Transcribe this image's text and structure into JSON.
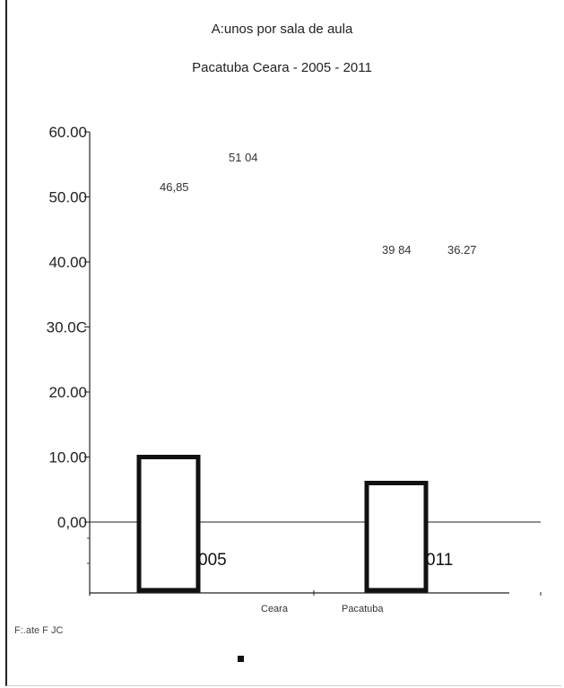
{
  "chart_data": {
    "type": "bar",
    "title": "A:unos por sala de aula",
    "subtitle": "Pacatuba   Ceara - 2005 - 2011",
    "ylim": [
      0,
      60
    ],
    "yticks": [
      "60.00",
      "50.00",
      "40.00",
      "30.0C",
      "20.00",
      "10.00",
      "0,00"
    ],
    "ytick_values": [
      60,
      50,
      40,
      30,
      20,
      10,
      0
    ],
    "categories": [
      "2005",
      "2011"
    ],
    "category_labels": [
      "005",
      "011"
    ],
    "x_axis_labels": [
      "Ceara",
      "Pacatuba"
    ],
    "series": [
      {
        "values": [
          46.85,
          39.84
        ]
      },
      {
        "values": [
          51.04,
          36.27
        ]
      }
    ],
    "data_label_text": [
      "46,85",
      "39 84",
      "51 04",
      "36.27"
    ],
    "bar_heights": [
      10,
      6
    ],
    "source": "F:.ate   F  JC"
  }
}
